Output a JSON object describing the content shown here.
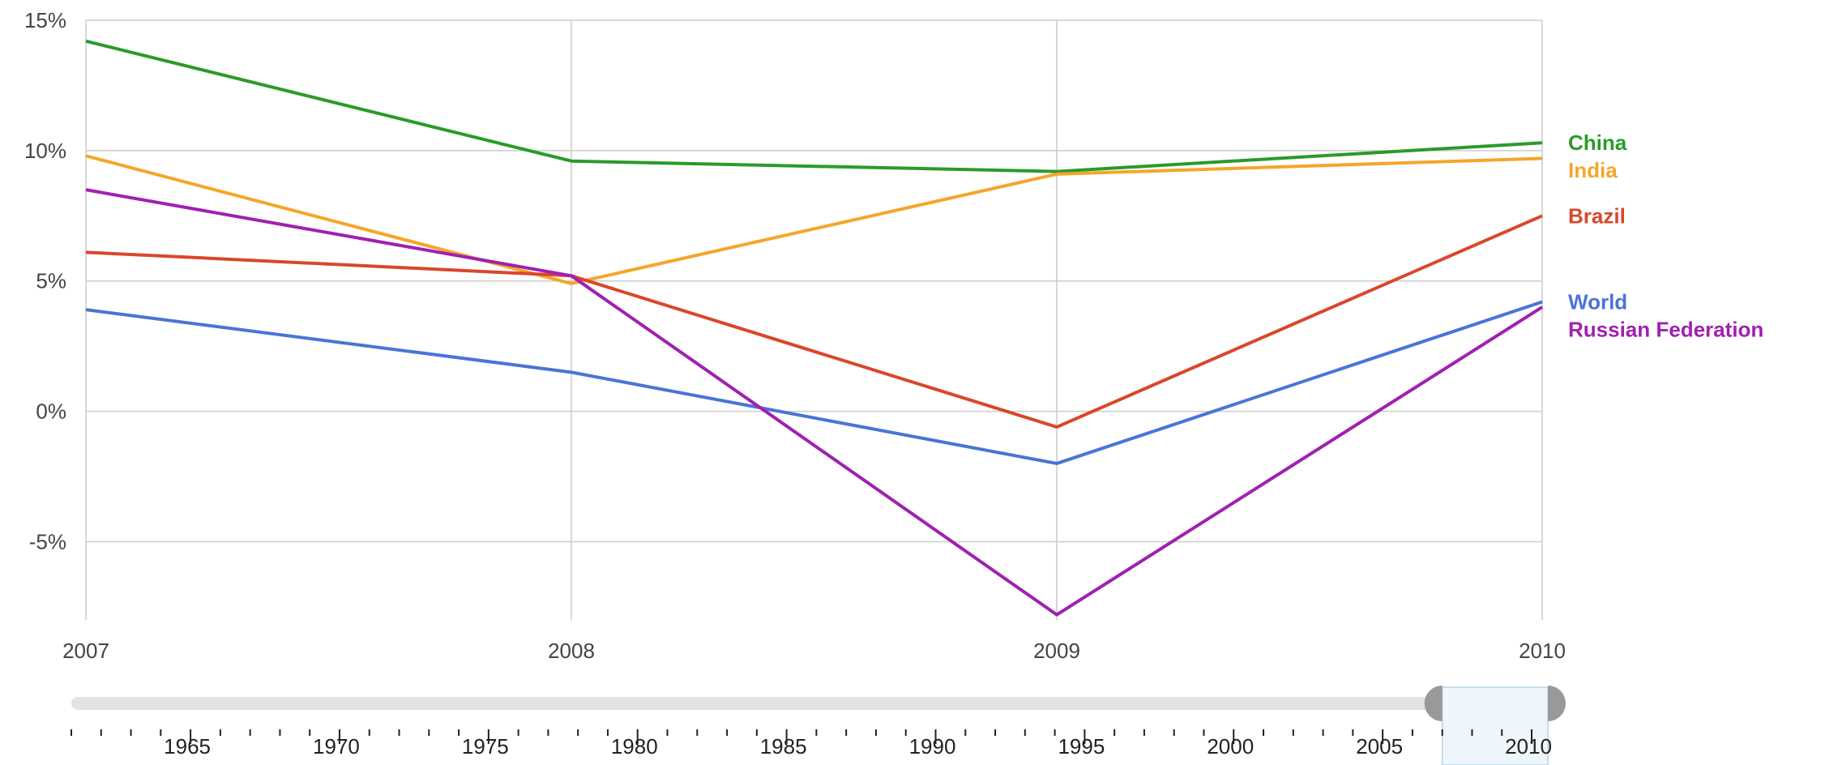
{
  "chart_data": {
    "type": "line",
    "x": [
      "2007",
      "2008",
      "2009",
      "2010"
    ],
    "ylim": [
      -8,
      15
    ],
    "y_ticks": [
      -5,
      0,
      5,
      10,
      15
    ],
    "y_tick_labels": [
      "-5%",
      "0%",
      "5%",
      "10%",
      "15%"
    ],
    "grid": true,
    "legend": "right-end labels",
    "series": [
      {
        "name": "China",
        "color": "#2b9a2b",
        "values": [
          14.2,
          9.6,
          9.2,
          10.3
        ]
      },
      {
        "name": "India",
        "color": "#f4a62a",
        "values": [
          9.8,
          4.9,
          9.1,
          9.7
        ]
      },
      {
        "name": "Brazil",
        "color": "#d9472b",
        "values": [
          6.1,
          5.2,
          -0.6,
          7.5
        ]
      },
      {
        "name": "World",
        "color": "#4a74d6",
        "values": [
          3.9,
          1.5,
          -2.0,
          4.2
        ]
      },
      {
        "name": "Russian Federation",
        "color": "#a020b0",
        "values": [
          8.5,
          5.2,
          -7.8,
          4.0
        ]
      }
    ]
  },
  "timeline": {
    "labels": [
      "1965",
      "1970",
      "1975",
      "1980",
      "1985",
      "1990",
      "1995",
      "2000",
      "2005",
      "2010"
    ],
    "range_start": "2007",
    "range_end": "2010"
  }
}
